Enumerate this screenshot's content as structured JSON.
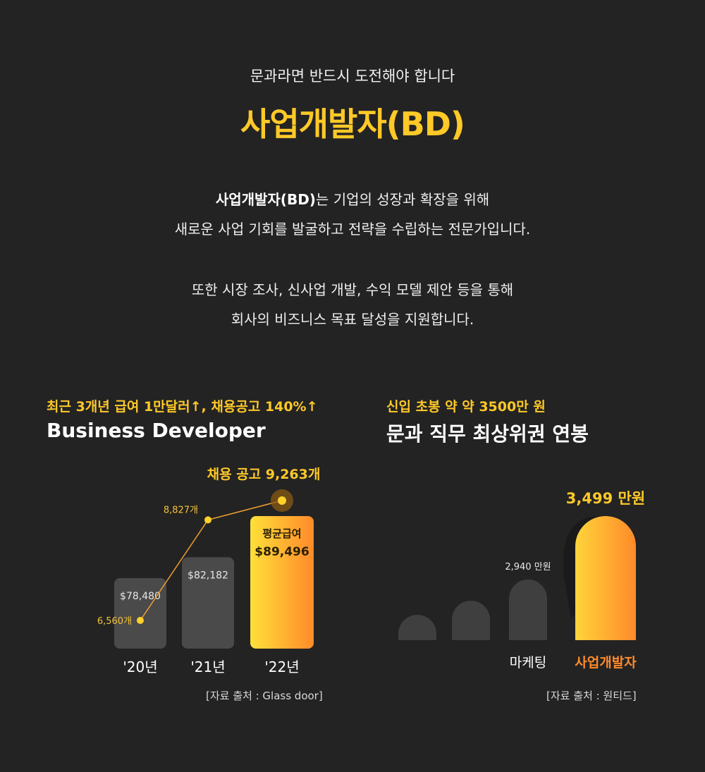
{
  "header": {
    "eyebrow": "문과라면 반드시 도전해야 합니다",
    "title": "사업개발자(BD)"
  },
  "intro": {
    "p1_strong": "사업개발자(BD)",
    "p1_rest": "는 기업의 성장과 확장을 위해",
    "p1_line2": "새로운 사업 기회를 발굴하고 전략을 수립하는 전문가입니다.",
    "p2_line1": "또한 시장 조사, 신사업 개발, 수익 모델 제안 등을 통해",
    "p2_line2": "회사의 비즈니스 목표 달성을 지원합니다."
  },
  "left_section": {
    "tag": "최근 3개년 급여 1만달러↑, 채용공고 140%↑",
    "title": "Business Developer",
    "source": "[자료 출처 : Glass door]"
  },
  "right_section": {
    "tag": "신입 초봉 약 약 3500만 원",
    "title": "문과 직무 최상위권 연봉",
    "source": "[자료 출처 : 원티드]"
  },
  "chart_data": [
    {
      "type": "bar",
      "categories": [
        "'20년",
        "'21년",
        "'22년"
      ],
      "series": [
        {
          "values": [
            78480,
            82182,
            89496
          ]
        },
        {
          "values": [
            6560,
            8827,
            9263
          ]
        }
      ],
      "bar_labels": [
        "$78,480",
        "$82,182",
        "$89,496"
      ],
      "bar_caption_last": "평균급여",
      "line_labels": [
        "6,560개",
        "8,827개",
        "9,263개"
      ],
      "line_label_last_prefix": "채용 공고",
      "colors": {
        "bar": "#4a4a4a",
        "highlight_start": "#ffe03a",
        "highlight_end": "#ff8a2a",
        "line": "#f0a030",
        "point": "#ffd12a"
      }
    },
    {
      "type": "bar",
      "categories": [
        "",
        "",
        "마케팅",
        "사업개발자"
      ],
      "values": [
        null,
        null,
        2940,
        3499
      ],
      "value_labels": [
        "",
        "",
        "2,940 만원",
        "3,499 만원"
      ],
      "colors": {
        "bar": "#3f3f3f",
        "highlight_start": "#ffd43a",
        "highlight_end": "#ff8a2a",
        "highlight_label": "#ff8a2a"
      }
    }
  ]
}
